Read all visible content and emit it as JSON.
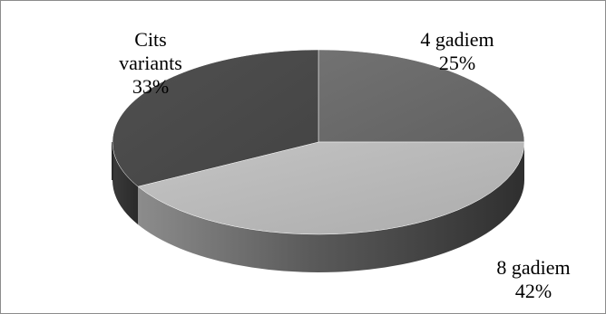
{
  "chart_data": {
    "type": "pie",
    "style": "3d",
    "categories": [
      "4 gadiem",
      "8 gadiem",
      "Cits variants"
    ],
    "values": [
      25,
      42,
      33
    ],
    "labels": [
      {
        "name": "4 gadiem",
        "percent": "25%"
      },
      {
        "name": "8 gadiem",
        "percent": "42%"
      },
      {
        "name": "Cits variants",
        "name_lines": [
          "Cits",
          "variants"
        ],
        "percent": "33%"
      }
    ],
    "colors": [
      "#6b6b6b",
      "#b9b9b9",
      "#4a4a4a"
    ],
    "legend": "none",
    "title": ""
  }
}
